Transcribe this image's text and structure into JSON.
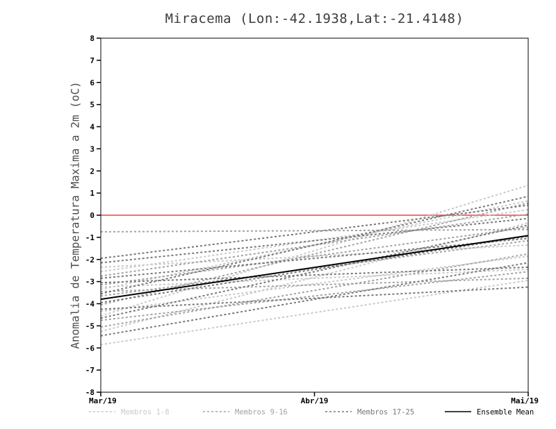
{
  "chart_data": {
    "type": "line",
    "title": "Miracema (Lon:-42.1938,Lat:-21.4148)",
    "ylabel": "Anomalia de Temperatura Maxima a 2m (oC)",
    "ylim": [
      -8,
      8
    ],
    "ytick_step": 1,
    "x_ticks": [
      {
        "label": "Mar/19",
        "pos": 0
      },
      {
        "label": "Abr/19",
        "pos": 0.5
      },
      {
        "label": "Mai/19",
        "pos": 1
      }
    ],
    "grid": false,
    "legend_position": "bottom",
    "zero_line": {
      "value": 0,
      "color": "#fa3c3c"
    },
    "groups": [
      {
        "name": "Membros 1-8",
        "color": "#c9c9c9",
        "style": "dashed",
        "members": [
          [
            -5.85,
            -2.95
          ],
          [
            -5.25,
            -0.35
          ],
          [
            -4.55,
            1.35
          ],
          [
            -4.35,
            -1.85
          ],
          [
            -3.35,
            0.65
          ],
          [
            -3.25,
            -2.45
          ],
          [
            -2.55,
            0.25
          ],
          [
            -2.35,
            -1.35
          ]
        ]
      },
      {
        "name": "Membros 9-16",
        "color": "#a3a3a3",
        "style": "dashed",
        "members": [
          [
            -5.05,
            -1.75
          ],
          [
            -4.75,
            -2.55
          ],
          [
            -4.05,
            0.55
          ],
          [
            -3.65,
            -1.15
          ],
          [
            -3.45,
            -2.85
          ],
          [
            -3.15,
            -0.55
          ],
          [
            -2.75,
            0.05
          ],
          [
            -0.75,
            -0.65
          ]
        ]
      },
      {
        "name": "Membros 17-25",
        "color": "#777777",
        "style": "dashed",
        "members": [
          [
            -5.45,
            -2.15
          ],
          [
            -4.65,
            -0.45
          ],
          [
            -4.25,
            -3.25
          ],
          [
            -3.95,
            -0.95
          ],
          [
            -3.55,
            0.85
          ],
          [
            -3.05,
            -2.35
          ],
          [
            -2.85,
            -1.05
          ],
          [
            -2.15,
            -0.15
          ],
          [
            -1.95,
            0.45
          ]
        ]
      }
    ],
    "mean": {
      "name": "Ensemble Mean",
      "color": "#000000",
      "style": "solid",
      "values": [
        -3.8,
        -0.92
      ]
    }
  }
}
